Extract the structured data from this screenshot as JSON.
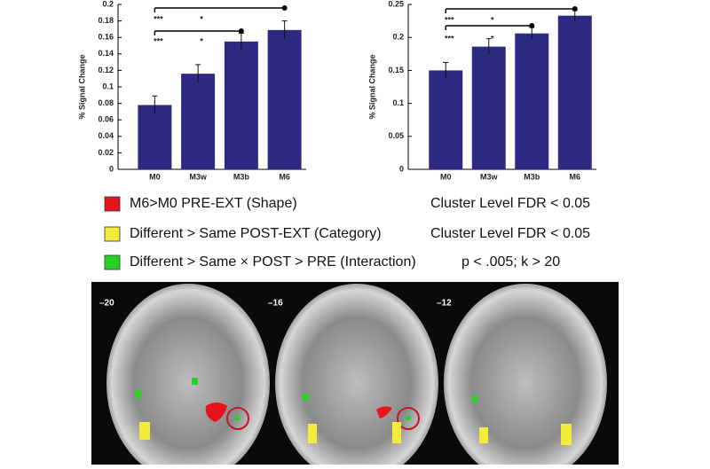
{
  "chart_data": [
    {
      "type": "bar",
      "y_label": "% Signal Change",
      "categories": [
        "M0",
        "M3w",
        "M3b",
        "M6"
      ],
      "values": [
        0.078,
        0.116,
        0.155,
        0.169
      ],
      "errors": [
        0.011,
        0.011,
        0.01,
        0.011
      ],
      "color": "#2e2a82",
      "ylim": [
        0,
        0.2
      ],
      "yticks": [
        0,
        0.02,
        0.04,
        0.06,
        0.08,
        0.1,
        0.12,
        0.14,
        0.16,
        0.18,
        0.2
      ],
      "annotations": [
        "***",
        "*",
        "***",
        "*"
      ]
    },
    {
      "type": "bar",
      "y_label": "% Signal Change",
      "categories": [
        "M0",
        "M3w",
        "M3b",
        "M6"
      ],
      "values": [
        0.15,
        0.186,
        0.206,
        0.233
      ],
      "errors": [
        0.012,
        0.012,
        0.009,
        0.008
      ],
      "color": "#2e2a82",
      "ylim": [
        0,
        0.25
      ],
      "yticks": [
        0,
        0.05,
        0.1,
        0.15,
        0.2,
        0.25
      ],
      "annotations": [
        "***",
        "*",
        "***",
        "*"
      ]
    }
  ],
  "legend": [
    {
      "color": "#e8141c",
      "label": "M6>M0 PRE-EXT (Shape)",
      "threshold": "Cluster Level FDR < 0.05"
    },
    {
      "color": "#f4ec3a",
      "label": "Different > Same POST-EXT (Category)",
      "threshold": "Cluster Level FDR < 0.05"
    },
    {
      "color": "#2bd12b",
      "label": "Different > Same × POST > PRE (Interaction)",
      "threshold": "p < .005; k > 20"
    }
  ],
  "brain_slices": [
    "–20",
    "–16",
    "–12"
  ]
}
